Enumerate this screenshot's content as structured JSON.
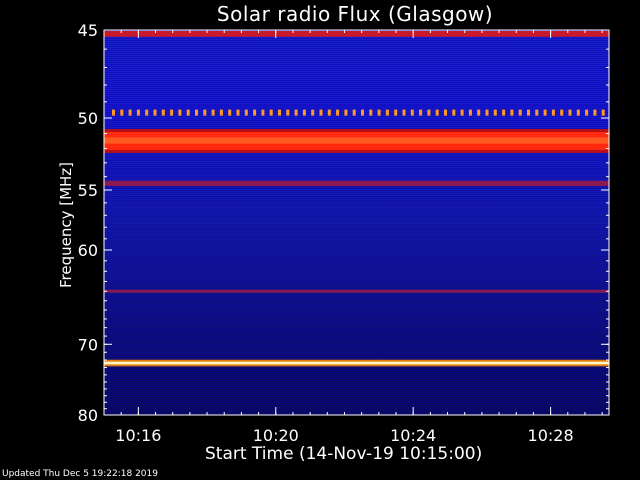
{
  "chart_data": {
    "type": "heatmap",
    "title": "Solar radio Flux (Glasgow)",
    "xlabel": "Start Time (14-Nov-19 10:15:00)",
    "ylabel": "Frequency [MHz]",
    "x_ticks": [
      "10:16",
      "10:20",
      "10:24",
      "10:28"
    ],
    "x_tick_minutes": [
      1,
      5,
      9,
      13
    ],
    "xlim_minutes": [
      0,
      14.7
    ],
    "y_ticks": [
      45,
      50,
      55,
      60,
      70,
      80
    ],
    "ylim": [
      45,
      80
    ],
    "y_scale": "reciprocal",
    "grid": false,
    "bands": [
      {
        "freq": 45.2,
        "width": 0.3,
        "level": "red"
      },
      {
        "freq": 49.6,
        "width": 0.25,
        "level": "dotted-orange"
      },
      {
        "freq": 51.5,
        "width": 1.2,
        "level": "red-strong"
      },
      {
        "freq": 54.5,
        "width": 0.4,
        "level": "red-dim"
      },
      {
        "freq": 64.0,
        "width": 0.3,
        "level": "red-dim"
      },
      {
        "freq": 72.4,
        "width": 0.35,
        "level": "white-hot"
      }
    ]
  },
  "footer": {
    "updated": "Updated Thu Dec  5 19:22:18 2019"
  }
}
